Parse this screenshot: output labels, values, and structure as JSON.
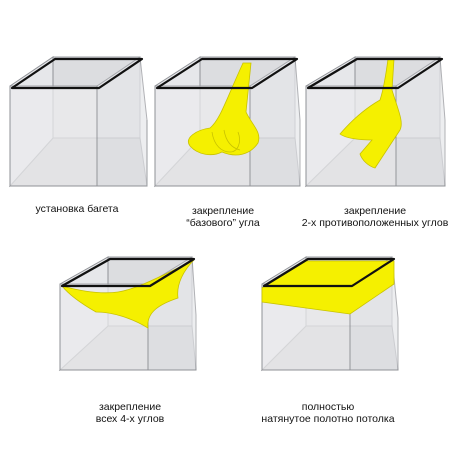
{
  "colors": {
    "canvas": "#f5f000",
    "frame": "#111111",
    "glass": "#e6e7ea",
    "floor": "#c9cacd"
  },
  "steps": [
    {
      "id": "baguette",
      "caption_lines": [
        "установка багета"
      ]
    },
    {
      "id": "base-corner",
      "caption_lines": [
        "закрепление",
        "“базового” угла"
      ]
    },
    {
      "id": "two-corners",
      "caption_lines": [
        "закрепление",
        "2-х противоположенных углов"
      ]
    },
    {
      "id": "four-corners",
      "caption_lines": [
        "закрепление",
        "всех 4-х углов"
      ]
    },
    {
      "id": "full-stretch",
      "caption_lines": [
        "полностью",
        "натянутое полотно потолка"
      ]
    }
  ]
}
